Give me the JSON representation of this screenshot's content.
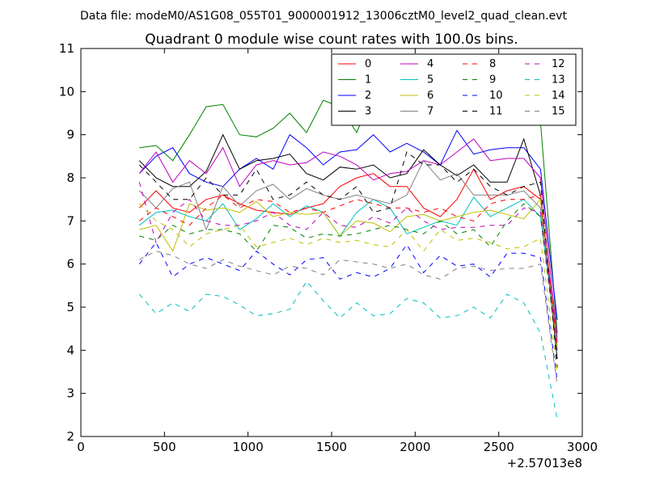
{
  "figure": {
    "suptitle": "Data file: modeM0/AS1G08_055T01_9000001912_13006cztM0_level2_quad_clean.evt"
  },
  "chart_data": {
    "type": "line",
    "title": "Quadrant 0 module wise count rates with 100.0s bins.",
    "xlabel": "",
    "ylabel": "",
    "x_offset_label": "+2.57013e8",
    "xlim": [
      0,
      3000
    ],
    "ylim": [
      2,
      11
    ],
    "xticks": [
      0,
      500,
      1000,
      1500,
      2000,
      2500,
      3000
    ],
    "yticks": [
      2,
      3,
      4,
      5,
      6,
      7,
      8,
      9,
      10,
      11
    ],
    "grid": false,
    "legend_position": "top-right",
    "x": [
      350,
      450,
      550,
      650,
      750,
      850,
      950,
      1050,
      1150,
      1250,
      1350,
      1450,
      1550,
      1650,
      1750,
      1850,
      1950,
      2050,
      2150,
      2250,
      2350,
      2450,
      2550,
      2650,
      2750,
      2850
    ],
    "series": [
      {
        "name": "0",
        "color": "#ff0000",
        "dash": "solid",
        "values": [
          7.3,
          7.7,
          7.3,
          7.2,
          7.5,
          7.6,
          7.4,
          7.25,
          7.2,
          7.15,
          7.3,
          7.4,
          7.8,
          8.0,
          8.1,
          7.8,
          7.8,
          7.3,
          7.1,
          7.5,
          8.2,
          7.5,
          7.7,
          7.8,
          7.5,
          4.2
        ]
      },
      {
        "name": "1",
        "color": "#008000",
        "dash": "solid",
        "values": [
          8.7,
          8.75,
          8.4,
          9.0,
          9.65,
          9.7,
          9.0,
          8.95,
          9.15,
          9.5,
          9.05,
          9.8,
          9.65,
          9.05,
          10.0,
          9.5,
          9.4,
          10.0,
          9.7,
          9.4,
          9.4,
          9.5,
          9.55,
          9.55,
          9.3,
          4.4
        ]
      },
      {
        "name": "2",
        "color": "#0000ff",
        "dash": "solid",
        "values": [
          8.1,
          8.5,
          8.7,
          8.1,
          7.9,
          7.8,
          8.2,
          8.45,
          8.2,
          9.0,
          8.7,
          8.3,
          8.6,
          8.65,
          9.0,
          8.6,
          8.8,
          8.6,
          8.3,
          9.1,
          8.55,
          8.65,
          8.7,
          8.7,
          8.2,
          4.7
        ]
      },
      {
        "name": "3",
        "color": "#000000",
        "dash": "solid",
        "values": [
          8.4,
          8.0,
          7.8,
          7.8,
          8.15,
          9.0,
          8.2,
          8.4,
          8.45,
          8.55,
          8.1,
          7.95,
          8.25,
          8.2,
          8.3,
          8.0,
          8.1,
          8.65,
          8.3,
          8.05,
          8.3,
          7.9,
          7.9,
          8.9,
          7.6,
          3.8
        ]
      },
      {
        "name": "4",
        "color": "#bf00bf",
        "dash": "solid",
        "values": [
          8.1,
          8.6,
          7.9,
          8.4,
          8.1,
          8.7,
          7.8,
          8.3,
          8.4,
          8.3,
          8.35,
          8.6,
          8.5,
          8.3,
          7.95,
          8.1,
          8.15,
          8.4,
          8.3,
          8.6,
          8.9,
          8.4,
          8.45,
          8.45,
          8.0,
          4.3
        ]
      },
      {
        "name": "5",
        "color": "#00bfbf",
        "dash": "solid",
        "values": [
          6.9,
          7.2,
          7.25,
          7.1,
          7.0,
          7.4,
          6.8,
          7.05,
          7.4,
          7.1,
          7.35,
          7.2,
          6.65,
          7.2,
          7.5,
          7.3,
          6.7,
          6.85,
          7.0,
          6.9,
          7.55,
          7.1,
          7.3,
          7.5,
          7.1,
          4.1
        ]
      },
      {
        "name": "6",
        "color": "#bfbf00",
        "dash": "solid",
        "values": [
          6.8,
          6.9,
          6.3,
          7.4,
          7.25,
          7.3,
          7.2,
          7.45,
          7.1,
          7.2,
          7.15,
          7.2,
          6.65,
          7.0,
          6.95,
          6.75,
          7.1,
          7.15,
          7.0,
          7.1,
          7.2,
          7.25,
          7.15,
          7.05,
          7.5,
          4.0
        ]
      },
      {
        "name": "7",
        "color": "#808080",
        "dash": "solid",
        "values": [
          7.7,
          7.3,
          7.75,
          7.9,
          6.8,
          7.8,
          7.35,
          7.7,
          7.85,
          7.5,
          7.75,
          7.6,
          7.5,
          7.6,
          7.5,
          7.4,
          7.6,
          8.4,
          7.95,
          8.1,
          7.6,
          7.6,
          7.6,
          7.7,
          7.3,
          4.2
        ]
      },
      {
        "name": "8",
        "color": "#ff0000",
        "dash": "dashed",
        "values": [
          7.0,
          7.3,
          7.1,
          6.9,
          7.3,
          7.6,
          7.3,
          7.5,
          7.45,
          7.2,
          7.3,
          7.2,
          7.35,
          7.5,
          7.4,
          7.3,
          7.3,
          7.2,
          7.3,
          7.1,
          7.0,
          7.4,
          7.5,
          7.5,
          7.6,
          4.1
        ]
      },
      {
        "name": "9",
        "color": "#008000",
        "dash": "dashed",
        "values": [
          6.65,
          6.55,
          6.9,
          6.7,
          6.8,
          6.8,
          6.7,
          6.3,
          6.9,
          6.85,
          6.6,
          6.7,
          6.65,
          6.7,
          6.8,
          6.9,
          6.8,
          6.7,
          7.0,
          6.7,
          6.8,
          6.4,
          7.0,
          7.4,
          7.1,
          3.9
        ]
      },
      {
        "name": "10",
        "color": "#0000ff",
        "dash": "dashed",
        "values": [
          6.0,
          6.5,
          5.7,
          6.0,
          6.15,
          6.0,
          5.85,
          6.3,
          6.0,
          5.75,
          6.1,
          6.15,
          5.65,
          5.8,
          5.7,
          5.9,
          6.45,
          5.8,
          6.2,
          5.95,
          6.0,
          5.7,
          6.25,
          6.25,
          6.15,
          3.3
        ]
      },
      {
        "name": "11",
        "color": "#000000",
        "dash": "dashed",
        "values": [
          8.3,
          7.9,
          7.5,
          7.5,
          8.0,
          7.6,
          7.6,
          8.2,
          7.5,
          7.6,
          7.9,
          7.6,
          7.5,
          7.8,
          7.2,
          7.3,
          8.6,
          8.3,
          8.3,
          7.9,
          8.2,
          7.8,
          7.6,
          7.8,
          7.9,
          3.6
        ]
      },
      {
        "name": "12",
        "color": "#bf00bf",
        "dash": "dashed",
        "values": [
          7.9,
          6.5,
          7.2,
          7.5,
          7.0,
          6.9,
          6.9,
          7.0,
          7.2,
          6.9,
          6.8,
          7.2,
          6.9,
          6.85,
          7.1,
          6.95,
          7.3,
          7.0,
          6.8,
          6.85,
          6.85,
          6.9,
          6.9,
          7.3,
          7.2,
          4.0
        ]
      },
      {
        "name": "13",
        "color": "#00bfbf",
        "dash": "dashed",
        "values": [
          5.3,
          4.85,
          5.1,
          4.9,
          5.3,
          5.25,
          5.05,
          4.8,
          4.85,
          4.95,
          5.6,
          5.15,
          4.75,
          5.1,
          4.8,
          4.85,
          5.2,
          5.1,
          4.75,
          4.8,
          5.0,
          4.75,
          5.3,
          5.1,
          4.4,
          2.4
        ]
      },
      {
        "name": "14",
        "color": "#bfbf00",
        "dash": "dashed",
        "values": [
          7.4,
          7.0,
          6.8,
          6.4,
          6.7,
          6.8,
          6.9,
          6.4,
          6.5,
          6.6,
          6.45,
          6.6,
          6.5,
          6.55,
          6.45,
          6.4,
          6.8,
          6.3,
          6.8,
          6.55,
          6.6,
          6.5,
          6.35,
          6.4,
          6.6,
          3.5
        ]
      },
      {
        "name": "15",
        "color": "#808080",
        "dash": "dashed",
        "values": [
          6.1,
          6.3,
          6.2,
          6.0,
          5.9,
          6.1,
          5.95,
          5.85,
          5.75,
          5.95,
          5.9,
          5.75,
          6.1,
          6.05,
          6.0,
          5.9,
          6.0,
          5.75,
          5.65,
          5.9,
          5.95,
          5.85,
          5.9,
          5.9,
          6.0,
          3.2
        ]
      }
    ]
  }
}
